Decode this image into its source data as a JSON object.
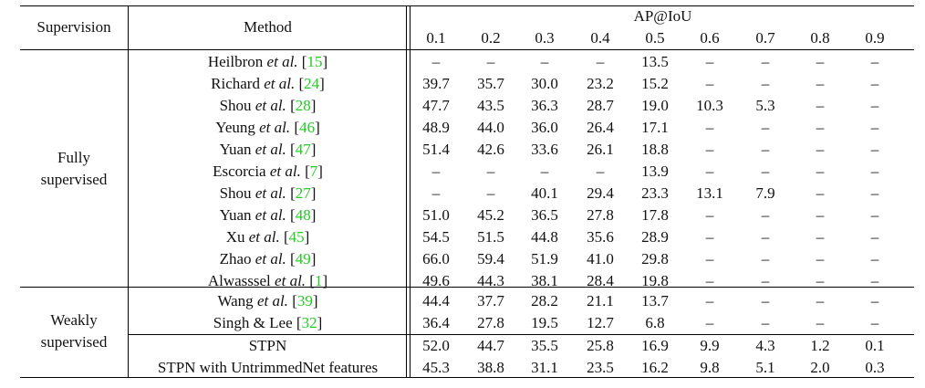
{
  "header": {
    "supervision": "Supervision",
    "method": "Method",
    "metric": "AP@IoU",
    "thresholds": [
      "0.1",
      "0.2",
      "0.3",
      "0.4",
      "0.5",
      "0.6",
      "0.7",
      "0.8",
      "0.9"
    ]
  },
  "groups": [
    {
      "label_line1": "Fully",
      "label_line2": "supervised"
    },
    {
      "label_line1": "Weakly",
      "label_line2": "supervised"
    }
  ],
  "rows": [
    {
      "name": "Heilbron",
      "suffix": "et al.",
      "cite": "15",
      "values": [
        "–",
        "–",
        "–",
        "–",
        "13.5",
        "–",
        "–",
        "–",
        "–"
      ]
    },
    {
      "name": "Richard",
      "suffix": "et al.",
      "cite": "24",
      "values": [
        "39.7",
        "35.7",
        "30.0",
        "23.2",
        "15.2",
        "–",
        "–",
        "–",
        "–"
      ]
    },
    {
      "name": "Shou",
      "suffix": "et al.",
      "cite": "28",
      "values": [
        "47.7",
        "43.5",
        "36.3",
        "28.7",
        "19.0",
        "10.3",
        "5.3",
        "–",
        "–"
      ]
    },
    {
      "name": "Yeung",
      "suffix": "et al.",
      "cite": "46",
      "values": [
        "48.9",
        "44.0",
        "36.0",
        "26.4",
        "17.1",
        "–",
        "–",
        "–",
        "–"
      ]
    },
    {
      "name": "Yuan",
      "suffix": "et al.",
      "cite": "47",
      "values": [
        "51.4",
        "42.6",
        "33.6",
        "26.1",
        "18.8",
        "–",
        "–",
        "–",
        "–"
      ]
    },
    {
      "name": "Escorcia",
      "suffix": "et al.",
      "cite": "7",
      "values": [
        "–",
        "–",
        "–",
        "–",
        "13.9",
        "–",
        "–",
        "–",
        "–"
      ]
    },
    {
      "name": "Shou",
      "suffix": "et al.",
      "cite": "27",
      "values": [
        "–",
        "–",
        "40.1",
        "29.4",
        "23.3",
        "13.1",
        "7.9",
        "–",
        "–"
      ]
    },
    {
      "name": "Yuan",
      "suffix": "et al.",
      "cite": "48",
      "values": [
        "51.0",
        "45.2",
        "36.5",
        "27.8",
        "17.8",
        "–",
        "–",
        "–",
        "–"
      ]
    },
    {
      "name": "Xu",
      "suffix": "et al.",
      "cite": "45",
      "values": [
        "54.5",
        "51.5",
        "44.8",
        "35.6",
        "28.9",
        "–",
        "–",
        "–",
        "–"
      ]
    },
    {
      "name": "Zhao",
      "suffix": "et al.",
      "cite": "49",
      "values": [
        "66.0",
        "59.4",
        "51.9",
        "41.0",
        "29.8",
        "–",
        "–",
        "–",
        "–"
      ]
    },
    {
      "name": "Alwasssel",
      "suffix": "et al.",
      "cite": "1",
      "values": [
        "49.6",
        "44.3",
        "38.1",
        "28.4",
        "19.8",
        "–",
        "–",
        "–",
        "–"
      ]
    },
    {
      "name": "Wang",
      "suffix": "et al.",
      "cite": "39",
      "values": [
        "44.4",
        "37.7",
        "28.2",
        "21.1",
        "13.7",
        "–",
        "–",
        "–",
        "–"
      ]
    },
    {
      "name": "Singh & Lee",
      "suffix": "",
      "cite": "32",
      "values": [
        "36.4",
        "27.8",
        "19.5",
        "12.7",
        "6.8",
        "–",
        "–",
        "–",
        "–"
      ]
    },
    {
      "name": "STPN",
      "suffix": "",
      "cite": "",
      "values": [
        "52.0",
        "44.7",
        "35.5",
        "25.8",
        "16.9",
        "9.9",
        "4.3",
        "1.2",
        "0.1"
      ]
    },
    {
      "name": "STPN with UntrimmedNet features",
      "suffix": "",
      "cite": "",
      "values": [
        "45.3",
        "38.8",
        "31.1",
        "23.5",
        "16.2",
        "9.8",
        "5.1",
        "2.0",
        "0.3"
      ]
    }
  ]
}
